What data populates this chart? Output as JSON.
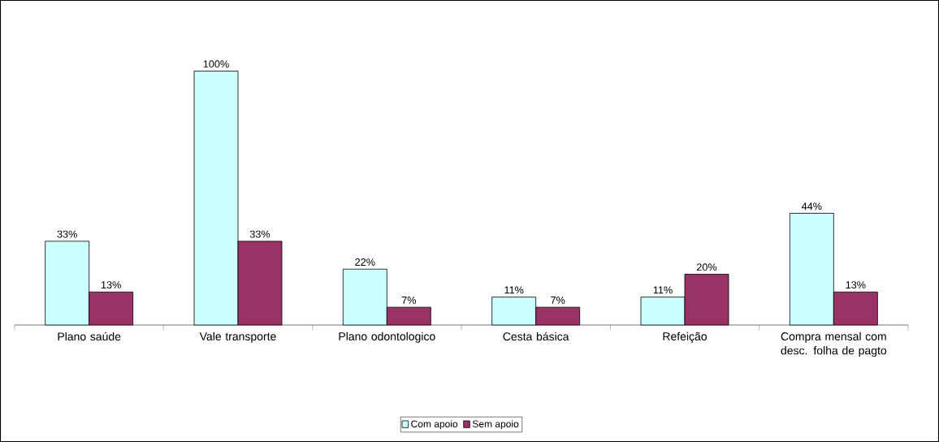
{
  "chart_data": {
    "type": "bar",
    "categories": [
      "Plano saúde",
      "Vale transporte",
      "Plano odontologico",
      "Cesta básica",
      "Refeição",
      "Compra mensal com desc. folha de pagto"
    ],
    "series": [
      {
        "name": "Com apoio",
        "color": "#ccffff",
        "values": [
          33,
          100,
          22,
          11,
          11,
          44
        ],
        "value_labels": [
          "33%",
          "100%",
          "22%",
          "11%",
          "11%",
          "44%"
        ]
      },
      {
        "name": "Sem apoio",
        "color": "#993366",
        "values": [
          13,
          33,
          7,
          7,
          20,
          13
        ],
        "value_labels": [
          "13%",
          "33%",
          "7%",
          "7%",
          "20%",
          "13%"
        ]
      }
    ],
    "legend": "bottom"
  }
}
